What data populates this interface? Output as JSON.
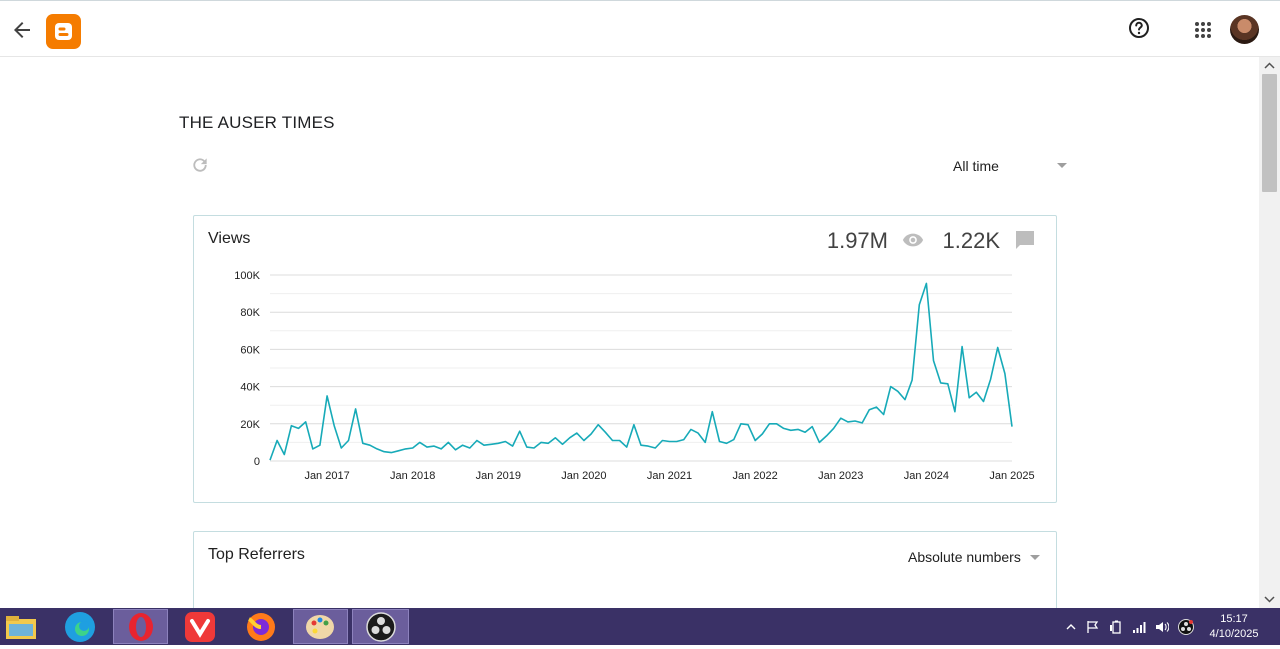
{
  "blog": {
    "title": "THE AUSER TIMES"
  },
  "range": {
    "selected": "All time"
  },
  "views": {
    "title": "Views",
    "total_views": "1.97M",
    "total_comments": "1.22K"
  },
  "referrers": {
    "title": "Top Referrers",
    "mode": "Absolute numbers"
  },
  "clock": {
    "time": "15:17",
    "date": "4/10/2025"
  },
  "colors": {
    "line": "#17aab8",
    "grid": "#e0e0e0",
    "logo": "#f57c00",
    "taskbar": "#3a3166"
  },
  "chart_data": {
    "type": "line",
    "title": "Views",
    "ylim": [
      0,
      100000
    ],
    "y_ticks": [
      0,
      20000,
      40000,
      60000,
      80000,
      100000
    ],
    "y_tick_labels": [
      "0",
      "20K",
      "40K",
      "60K",
      "80K",
      "100K"
    ],
    "x_tick_labels": [
      "Jan 2017",
      "Jan 2018",
      "Jan 2019",
      "Jan 2020",
      "Jan 2021",
      "Jan 2022",
      "Jan 2023",
      "Jan 2024",
      "Jan 2025"
    ],
    "x_start": "2016-05",
    "series": [
      {
        "values": [
          500,
          11000,
          3500,
          19000,
          17500,
          21000,
          6500,
          8500,
          35000,
          19000,
          7000,
          11000,
          28000,
          9500,
          8500,
          6500,
          5000,
          4500,
          5500,
          6500,
          7000,
          10000,
          7500,
          8000,
          6500,
          10000,
          6000,
          8500,
          7000,
          11000,
          8500,
          9000,
          9500,
          10500,
          8000,
          16000,
          7500,
          7000,
          10000,
          9500,
          12500,
          9000,
          12500,
          15000,
          11000,
          14500,
          19500,
          15500,
          11000,
          11000,
          7500,
          19500,
          8500,
          8000,
          7000,
          11000,
          10500,
          10500,
          11500,
          17000,
          15000,
          10000,
          26500,
          10500,
          9500,
          11500,
          20000,
          19500,
          11000,
          14500,
          20000,
          20000,
          17500,
          16500,
          17000,
          15500,
          18500,
          10000,
          13500,
          17500,
          23000,
          21000,
          21500,
          20500,
          27500,
          29000,
          25000,
          40000,
          37500,
          33000,
          43500,
          84000,
          95500,
          54000,
          42000,
          41500,
          26500,
          61500,
          34000,
          37000,
          32000,
          44000,
          61000,
          47000,
          18500
        ]
      }
    ]
  }
}
